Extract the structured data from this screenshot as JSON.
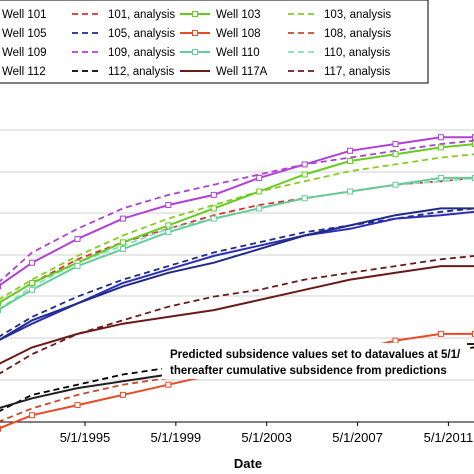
{
  "chart_data": {
    "type": "line",
    "xlabel": "Date",
    "x_ticks": [
      "5/1/1995",
      "5/1/1999",
      "5/1/2003",
      "5/1/2007",
      "5/1/2011"
    ],
    "x_range": [
      1991.5,
      2012.5
    ],
    "y_range": [
      0,
      100
    ],
    "grid": true,
    "legend_position": "top",
    "annotation": [
      "Predicted subsidence values set to datavalues at 5/1/",
      "thereafter cumulative subsidence from predictions"
    ],
    "series": [
      {
        "name": "Well 101",
        "color": "#2e2eb8",
        "style": "solid",
        "marker": "none",
        "points": [
          [
            1991.5,
            24
          ],
          [
            1993,
            29
          ],
          [
            1995,
            35
          ],
          [
            1997,
            41
          ],
          [
            1999,
            45
          ],
          [
            2001,
            49
          ],
          [
            2003,
            52
          ],
          [
            2005,
            55
          ],
          [
            2007,
            57
          ],
          [
            2009,
            60
          ],
          [
            2011,
            61
          ],
          [
            2012.5,
            62
          ]
        ]
      },
      {
        "name": "101, analysis",
        "color": "#e03030",
        "style": "dashed",
        "marker": "none",
        "points": [
          [
            1991.5,
            35
          ],
          [
            1993,
            41
          ],
          [
            1995,
            48
          ],
          [
            1997,
            53
          ],
          [
            1999,
            57
          ],
          [
            2001,
            61
          ],
          [
            2003,
            64
          ],
          [
            2005,
            66
          ],
          [
            2007,
            68
          ],
          [
            2009,
            70
          ],
          [
            2011,
            71
          ],
          [
            2012.5,
            72
          ]
        ]
      },
      {
        "name": "Well 103",
        "color": "#66cc22",
        "style": "solid",
        "marker": "square",
        "points": [
          [
            1991.5,
            35
          ],
          [
            1993,
            41
          ],
          [
            1995,
            47
          ],
          [
            1997,
            53
          ],
          [
            1999,
            58
          ],
          [
            2001,
            63
          ],
          [
            2003,
            68
          ],
          [
            2005,
            73
          ],
          [
            2007,
            77
          ],
          [
            2009,
            79
          ],
          [
            2011,
            81
          ],
          [
            2012.5,
            82
          ]
        ]
      },
      {
        "name": "103, analysis",
        "color": "#88cc22",
        "style": "dashed",
        "marker": "none",
        "points": [
          [
            1991.5,
            36
          ],
          [
            1993,
            42
          ],
          [
            1995,
            49
          ],
          [
            1997,
            55
          ],
          [
            1999,
            60
          ],
          [
            2001,
            64
          ],
          [
            2003,
            68
          ],
          [
            2005,
            71
          ],
          [
            2007,
            74
          ],
          [
            2009,
            76
          ],
          [
            2011,
            78
          ],
          [
            2012.5,
            79
          ]
        ]
      },
      {
        "name": "Well 105",
        "color": "#1f2a8a",
        "style": "solid",
        "marker": "none",
        "points": [
          [
            1991.5,
            24
          ],
          [
            1993,
            30
          ],
          [
            1995,
            35
          ],
          [
            1997,
            40
          ],
          [
            1999,
            44
          ],
          [
            2001,
            47
          ],
          [
            2003,
            51
          ],
          [
            2005,
            55
          ],
          [
            2007,
            58
          ],
          [
            2009,
            61
          ],
          [
            2011,
            63
          ],
          [
            2012.5,
            63
          ]
        ]
      },
      {
        "name": "105, analysis",
        "color": "#1f2a8a",
        "style": "dashed",
        "marker": "none",
        "points": [
          [
            1991.5,
            25
          ],
          [
            1993,
            31
          ],
          [
            1995,
            37
          ],
          [
            1997,
            42
          ],
          [
            1999,
            46
          ],
          [
            2001,
            50
          ],
          [
            2003,
            53
          ],
          [
            2005,
            56
          ],
          [
            2007,
            58
          ],
          [
            2009,
            60
          ],
          [
            2011,
            62
          ],
          [
            2012.5,
            63
          ]
        ]
      },
      {
        "name": "Well 108",
        "color": "#e84a2a",
        "style": "solid",
        "marker": "square",
        "points": [
          [
            1991.5,
            -2
          ],
          [
            1993,
            2
          ],
          [
            1995,
            5
          ],
          [
            1997,
            8
          ],
          [
            1999,
            11
          ],
          [
            2001,
            14
          ],
          [
            2003,
            17
          ],
          [
            2005,
            18
          ],
          [
            2007,
            21
          ],
          [
            2009,
            24
          ],
          [
            2011,
            26
          ],
          [
            2012.5,
            26
          ]
        ]
      },
      {
        "name": "108, analysis",
        "color": "#c84a2a",
        "style": "dashed",
        "marker": "none",
        "points": [
          [
            1991.5,
            0
          ],
          [
            1993,
            4
          ],
          [
            1995,
            8
          ],
          [
            1997,
            11
          ],
          [
            1999,
            13
          ],
          [
            2001,
            15
          ],
          [
            2003,
            17
          ],
          [
            2005,
            18
          ],
          [
            2007,
            19
          ],
          [
            2009,
            20
          ],
          [
            2011,
            21
          ],
          [
            2012.5,
            22
          ]
        ]
      },
      {
        "name": "Well 109",
        "color": "#b040d8",
        "style": "solid",
        "marker": "square",
        "points": [
          [
            1991.5,
            40
          ],
          [
            1993,
            47
          ],
          [
            1995,
            54
          ],
          [
            1997,
            60
          ],
          [
            1999,
            64
          ],
          [
            2001,
            67
          ],
          [
            2003,
            72
          ],
          [
            2005,
            76
          ],
          [
            2007,
            80
          ],
          [
            2009,
            82
          ],
          [
            2011,
            84
          ],
          [
            2012.5,
            84
          ]
        ]
      },
      {
        "name": "109, analysis",
        "color": "#b040d8",
        "style": "dashed",
        "marker": "none",
        "points": [
          [
            1991.5,
            41
          ],
          [
            1993,
            50
          ],
          [
            1995,
            57
          ],
          [
            1997,
            63
          ],
          [
            1999,
            67
          ],
          [
            2001,
            70
          ],
          [
            2003,
            73
          ],
          [
            2005,
            76
          ],
          [
            2007,
            78
          ],
          [
            2009,
            80
          ],
          [
            2011,
            82
          ],
          [
            2012.5,
            83
          ]
        ]
      },
      {
        "name": "Well 110",
        "color": "#66cc99",
        "style": "solid",
        "marker": "square",
        "points": [
          [
            1991.5,
            33
          ],
          [
            1993,
            39
          ],
          [
            1995,
            46
          ],
          [
            1997,
            51
          ],
          [
            1999,
            56
          ],
          [
            2001,
            60
          ],
          [
            2003,
            63
          ],
          [
            2005,
            66
          ],
          [
            2007,
            68
          ],
          [
            2009,
            70
          ],
          [
            2011,
            72
          ],
          [
            2012.5,
            72
          ]
        ]
      },
      {
        "name": "110, analysis",
        "color": "#80e0c0",
        "style": "dashed",
        "marker": "none",
        "points": [
          [
            1991.5,
            33
          ],
          [
            1993,
            40
          ],
          [
            1995,
            47
          ],
          [
            1997,
            52
          ],
          [
            1999,
            57
          ],
          [
            2001,
            60
          ],
          [
            2003,
            63
          ],
          [
            2005,
            66
          ],
          [
            2007,
            68
          ],
          [
            2009,
            70
          ],
          [
            2011,
            71
          ],
          [
            2012.5,
            72
          ]
        ]
      },
      {
        "name": "Well 112",
        "color": "#202020",
        "style": "solid",
        "marker": "none",
        "points": [
          [
            1991.5,
            4
          ],
          [
            1993,
            7
          ],
          [
            1995,
            10
          ],
          [
            1997,
            12
          ],
          [
            1999,
            14
          ],
          [
            2001,
            16
          ],
          [
            2003,
            17
          ],
          [
            2005,
            19
          ],
          [
            2007,
            20
          ],
          [
            2009,
            22
          ],
          [
            2011,
            23
          ],
          [
            2012.5,
            23
          ]
        ]
      },
      {
        "name": "112, analysis",
        "color": "#000000",
        "style": "dashed",
        "marker": "none",
        "points": [
          [
            1991.5,
            3
          ],
          [
            1993,
            8
          ],
          [
            1995,
            11
          ],
          [
            1997,
            14
          ],
          [
            1999,
            16
          ],
          [
            2001,
            17
          ],
          [
            2003,
            18
          ],
          [
            2005,
            19
          ],
          [
            2007,
            20
          ],
          [
            2009,
            21
          ],
          [
            2011,
            21
          ],
          [
            2012.5,
            22
          ]
        ]
      },
      {
        "name": "Well 117A",
        "color": "#6b1a1a",
        "style": "solid",
        "marker": "none",
        "points": [
          [
            1991.5,
            17
          ],
          [
            1993,
            22
          ],
          [
            1995,
            26
          ],
          [
            1997,
            29
          ],
          [
            1999,
            31
          ],
          [
            2001,
            33
          ],
          [
            2003,
            36
          ],
          [
            2005,
            39
          ],
          [
            2007,
            42
          ],
          [
            2009,
            44
          ],
          [
            2011,
            46
          ],
          [
            2012.5,
            46
          ]
        ]
      },
      {
        "name": "117, analysis",
        "color": "#6b1a1a",
        "style": "dashed",
        "marker": "none",
        "points": [
          [
            1991.5,
            14
          ],
          [
            1993,
            20
          ],
          [
            1995,
            26
          ],
          [
            1997,
            30
          ],
          [
            1999,
            34
          ],
          [
            2001,
            37
          ],
          [
            2003,
            39
          ],
          [
            2005,
            42
          ],
          [
            2007,
            44
          ],
          [
            2009,
            46
          ],
          [
            2011,
            48
          ],
          [
            2012.5,
            49
          ]
        ]
      }
    ]
  }
}
